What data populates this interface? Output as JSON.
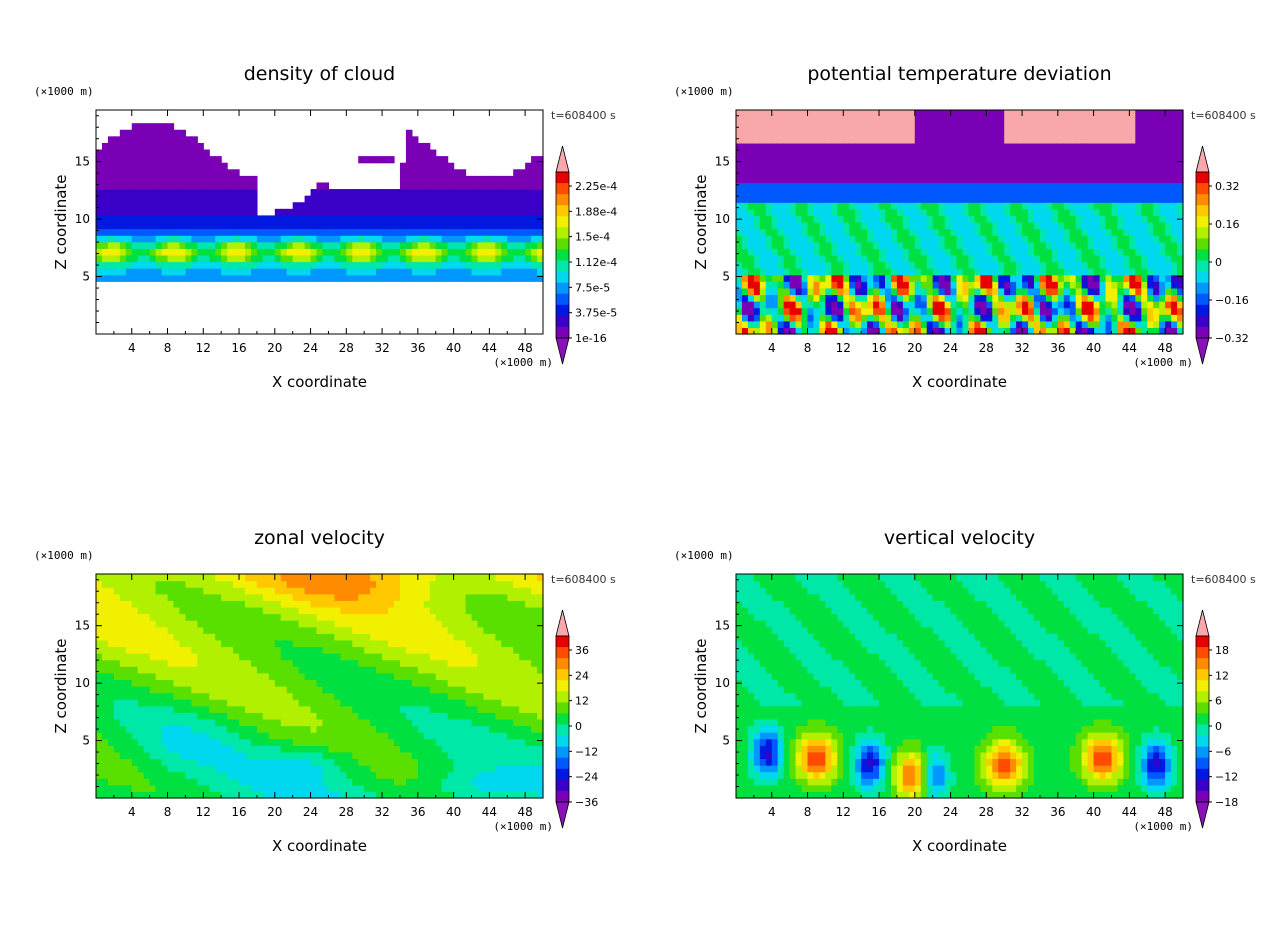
{
  "chart_data": [
    {
      "type": "heatmap",
      "title": "density of cloud",
      "xlabel": "X coordinate",
      "ylabel": "Z coordinate",
      "x_unit": "(×1000 m)",
      "y_unit": "(×1000 m)",
      "time_label": "t=608400 s",
      "xlim": [
        0,
        50
      ],
      "ylim": [
        0,
        19.5
      ],
      "xticks": [
        "4",
        "8",
        "12",
        "16",
        "20",
        "24",
        "28",
        "32",
        "36",
        "40",
        "44",
        "48"
      ],
      "yticks": [
        "5",
        "10",
        "15"
      ],
      "colorbar": {
        "labels": [
          "2.25e-4",
          "1.88e-4",
          "1.5e-4",
          "1.12e-4",
          "7.5e-5",
          "3.75e-5",
          "1e-16"
        ],
        "range": [
          0,
          0.00026
        ]
      }
    },
    {
      "type": "heatmap",
      "title": "potential temperature deviation",
      "xlabel": "X coordinate",
      "ylabel": "Z coordinate",
      "x_unit": "(×1000 m)",
      "y_unit": "(×1000 m)",
      "time_label": "t=608400 s",
      "xlim": [
        0,
        50
      ],
      "ylim": [
        0,
        19.5
      ],
      "xticks": [
        "4",
        "8",
        "12",
        "16",
        "20",
        "24",
        "28",
        "32",
        "36",
        "40",
        "44",
        "48"
      ],
      "yticks": [
        "5",
        "10",
        "15"
      ],
      "colorbar": {
        "labels": [
          "0.32",
          "0.16",
          "0",
          "−0.16",
          "−0.32"
        ],
        "range": [
          -0.4,
          0.4
        ]
      }
    },
    {
      "type": "heatmap",
      "title": "zonal velocity",
      "xlabel": "X coordinate",
      "ylabel": "Z coordinate",
      "x_unit": "(×1000 m)",
      "y_unit": "(×1000 m)",
      "time_label": "t=608400 s",
      "xlim": [
        0,
        50
      ],
      "ylim": [
        0,
        19.5
      ],
      "xticks": [
        "4",
        "8",
        "12",
        "16",
        "20",
        "24",
        "28",
        "32",
        "36",
        "40",
        "44",
        "48"
      ],
      "yticks": [
        "5",
        "10",
        "15"
      ],
      "colorbar": {
        "labels": [
          "36",
          "24",
          "12",
          "0",
          "−12",
          "−24",
          "−36"
        ],
        "range": [
          -42,
          42
        ]
      }
    },
    {
      "type": "heatmap",
      "title": "vertical velocity",
      "xlabel": "X coordinate",
      "ylabel": "Z coordinate",
      "x_unit": "(×1000 m)",
      "y_unit": "(×1000 m)",
      "time_label": "t=608400 s",
      "xlim": [
        0,
        50
      ],
      "ylim": [
        0,
        19.5
      ],
      "xticks": [
        "4",
        "8",
        "12",
        "16",
        "20",
        "24",
        "28",
        "32",
        "36",
        "40",
        "44",
        "48"
      ],
      "yticks": [
        "5",
        "10",
        "15"
      ],
      "colorbar": {
        "labels": [
          "18",
          "12",
          "6",
          "0",
          "−6",
          "−12",
          "−18"
        ],
        "range": [
          -21,
          21
        ]
      }
    }
  ]
}
